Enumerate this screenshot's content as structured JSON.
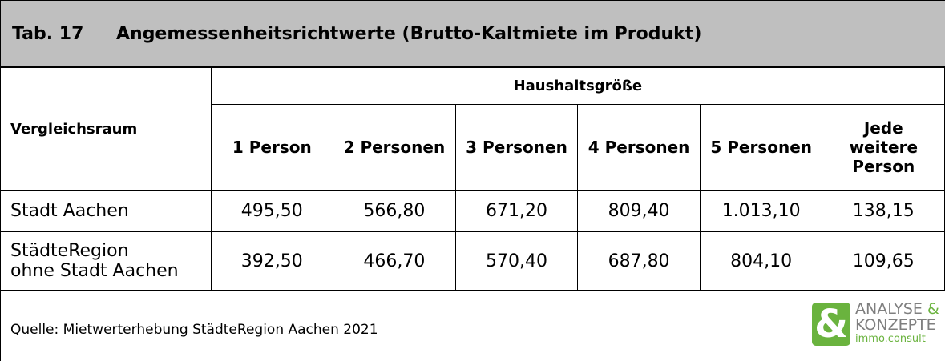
{
  "header": {
    "label": "Tab. 17",
    "title": "Angemessenheitsrichtwerte (Brutto-Kaltmiete im Produkt)"
  },
  "table": {
    "row_header": "Vergleichsraum",
    "group_header": "Haushaltsgröße",
    "columns": [
      "1 Person",
      "2 Personen",
      "3 Personen",
      "4 Personen",
      "5 Personen",
      "Jede\nweitere\nPerson"
    ],
    "rows": [
      [
        "Stadt Aachen",
        "495,50",
        "566,80",
        "671,20",
        "809,40",
        "1.013,10",
        "138,15"
      ],
      [
        "StädteRegion\nohne Stadt Aachen",
        "392,50",
        "466,70",
        "570,40",
        "687,80",
        "804,10",
        "109,65"
      ]
    ]
  },
  "footer": {
    "source": "Quelle: Mietwerterhebung StädteRegion Aachen 2021",
    "logo": {
      "icon": "&",
      "line1": "ANALYSE",
      "amp": "&",
      "line2": "KONZEPTE",
      "line3": "immo.consult"
    }
  }
}
